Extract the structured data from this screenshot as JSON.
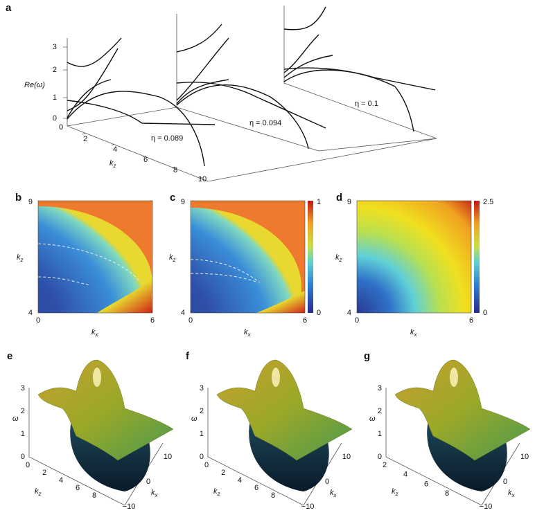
{
  "panel_a": {
    "label": "a",
    "y_axis_label": "Re(ω)",
    "y_ticks": [
      "0",
      "1",
      "2",
      "3"
    ],
    "x_origin": "0",
    "depth_axis_label": {
      "main": "k",
      "sub": "z"
    },
    "depth_ticks": [
      "2",
      "4",
      "6",
      "8",
      "10"
    ],
    "annotations": [
      "η = 0.089",
      "η = 0.094",
      "η = 0.1"
    ]
  },
  "panel_b": {
    "label": "b",
    "y_axis_label": {
      "main": "k",
      "sub": "z"
    },
    "y_ticks": [
      "9",
      "4"
    ],
    "x_axis_label": {
      "main": "k",
      "sub": "x"
    },
    "x_ticks": [
      "0",
      "6"
    ]
  },
  "panel_c": {
    "label": "c",
    "y_axis_label": {
      "main": "k",
      "sub": "z"
    },
    "y_ticks": [
      "9",
      "4"
    ],
    "x_axis_label": {
      "main": "k",
      "sub": "x"
    },
    "x_ticks": [
      "0",
      "6"
    ],
    "colorbar_ticks": [
      "1",
      "0"
    ]
  },
  "panel_d": {
    "label": "d",
    "y_axis_label": {
      "main": "k",
      "sub": "z"
    },
    "y_ticks": [
      "9",
      "4"
    ],
    "x_axis_label": {
      "main": "k",
      "sub": "x"
    },
    "x_ticks": [
      "0",
      "6"
    ],
    "colorbar_ticks": [
      "2.5",
      "0"
    ]
  },
  "panel_e": {
    "label": "e",
    "z_axis_label": "ω",
    "z_ticks": [
      "0",
      "1",
      "2",
      "3"
    ],
    "kz_label": {
      "main": "k",
      "sub": "z"
    },
    "kz_ticks": [
      "0",
      "2",
      "4",
      "6",
      "8"
    ],
    "kx_label": {
      "main": "k",
      "sub": "x"
    },
    "kx_ticks": [
      "10",
      "0",
      "−10"
    ]
  },
  "panel_f": {
    "label": "f",
    "z_axis_label": "ω",
    "z_ticks": [
      "0",
      "1",
      "2",
      "3"
    ],
    "kz_label": {
      "main": "k",
      "sub": "z"
    },
    "kz_ticks": [
      "0",
      "2",
      "4",
      "6",
      "8"
    ],
    "kx_label": {
      "main": "k",
      "sub": "x"
    },
    "kx_ticks": [
      "10",
      "0",
      "−10"
    ]
  },
  "panel_g": {
    "label": "g",
    "z_axis_label": "ω",
    "z_ticks": [
      "0",
      "1",
      "2",
      "3"
    ],
    "kz_label": {
      "main": "k",
      "sub": "z"
    },
    "kz_ticks": [
      "2",
      "4",
      "6",
      "8"
    ],
    "kx_label": {
      "main": "k",
      "sub": "x"
    },
    "kx_ticks": [
      "10",
      "0",
      "−10"
    ]
  }
}
